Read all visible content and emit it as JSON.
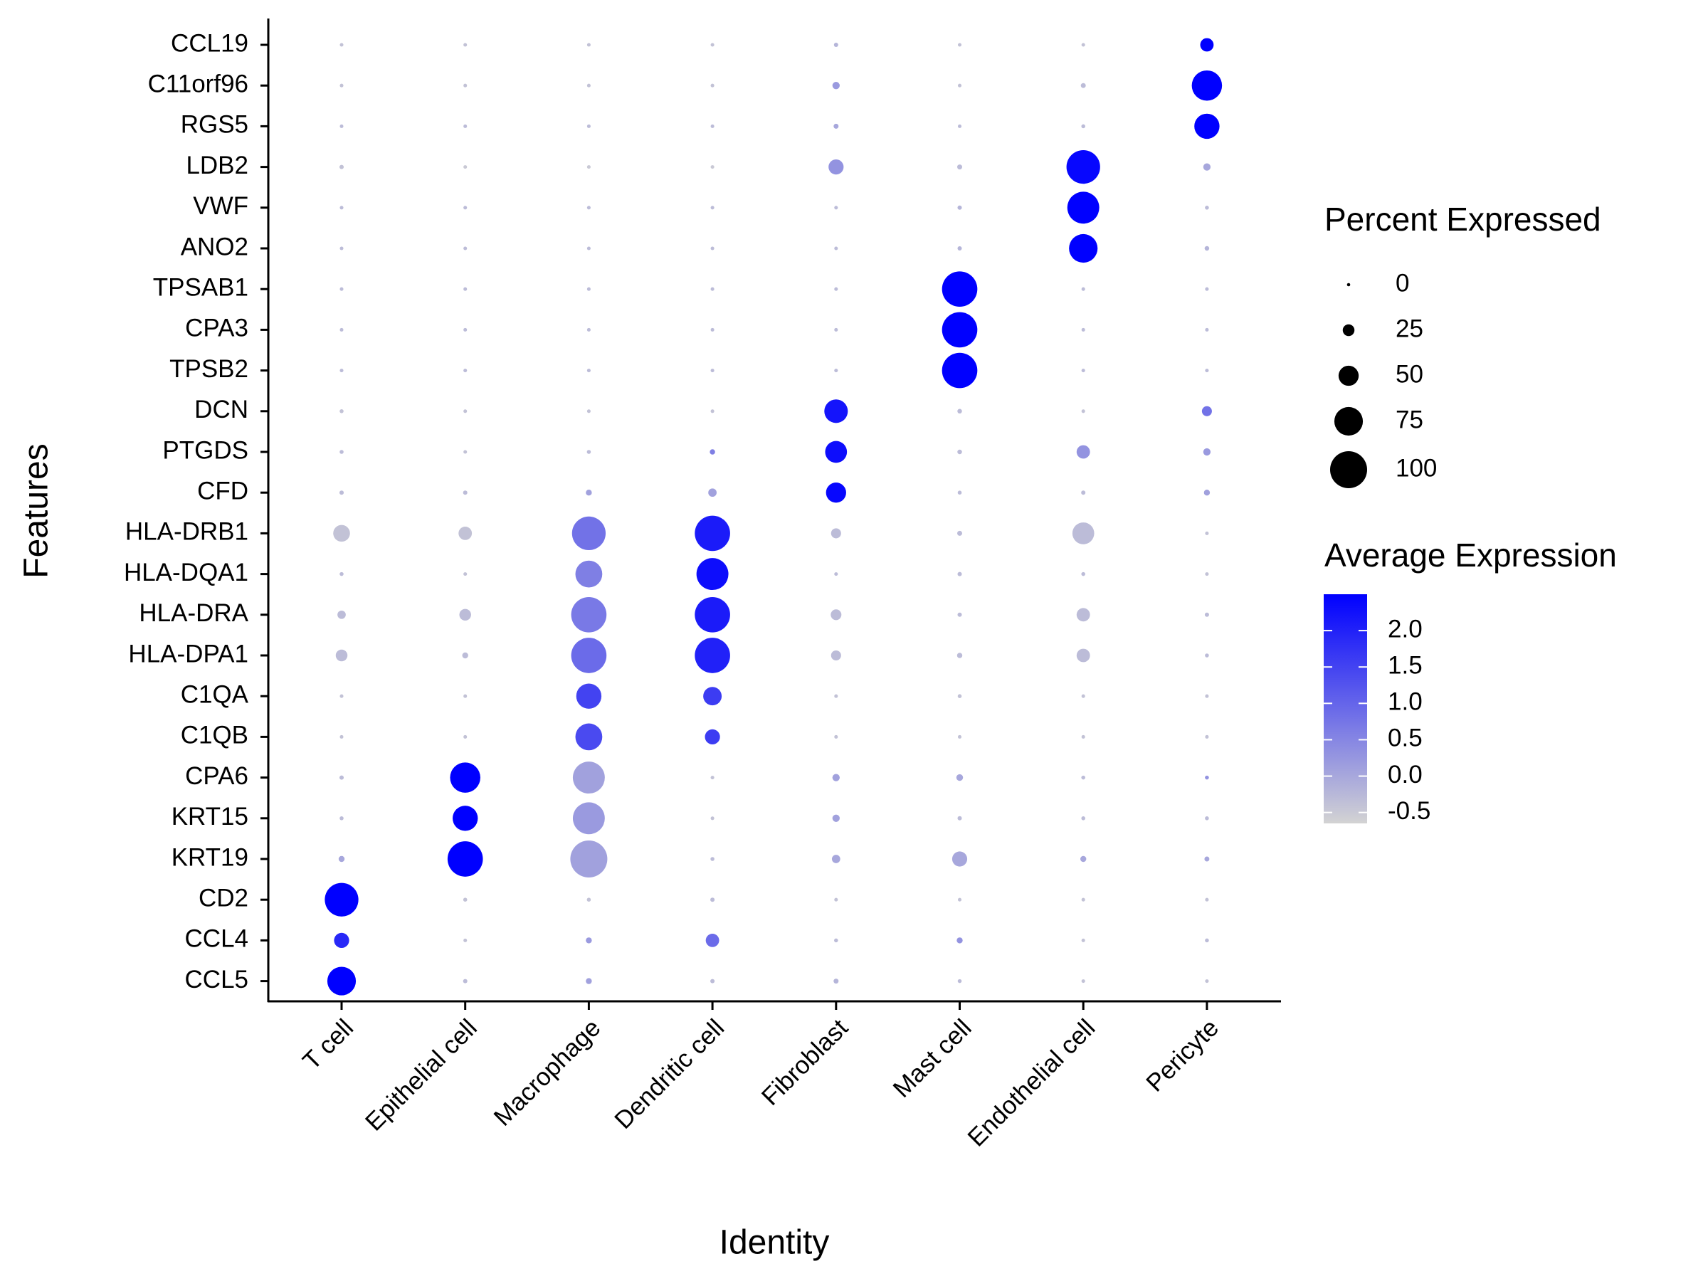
{
  "chart_data": {
    "type": "dotplot",
    "x_label": "Identity",
    "y_label": "Features",
    "categories": [
      "T cell",
      "Epithelial cell",
      "Macrophage",
      "Dendritic cell",
      "Fibroblast",
      "Mast cell",
      "Endothelial cell",
      "Pericyte"
    ],
    "features": [
      "CCL19",
      "C11orf96",
      "RGS5",
      "LDB2",
      "VWF",
      "ANO2",
      "TPSAB1",
      "CPA3",
      "TPSB2",
      "DCN",
      "PTGDS",
      "CFD",
      "HLA-DRB1",
      "HLA-DQA1",
      "HLA-DRA",
      "HLA-DPA1",
      "C1QA",
      "C1QB",
      "CPA6",
      "KRT15",
      "KRT19",
      "CD2",
      "CCL4",
      "CCL5"
    ],
    "percent_expressed": [
      [
        1,
        1,
        1,
        1,
        3,
        1,
        1,
        30
      ],
      [
        1,
        1,
        1,
        1,
        12,
        1,
        5,
        80
      ],
      [
        1,
        1,
        1,
        1,
        5,
        1,
        2,
        65
      ],
      [
        3,
        1,
        1,
        1,
        35,
        5,
        90,
        12
      ],
      [
        1,
        1,
        1,
        1,
        1,
        3,
        85,
        2
      ],
      [
        1,
        1,
        1,
        1,
        1,
        3,
        75,
        4
      ],
      [
        1,
        1,
        1,
        1,
        1,
        95,
        1,
        1
      ],
      [
        1,
        1,
        1,
        1,
        1,
        95,
        1,
        1
      ],
      [
        1,
        1,
        1,
        1,
        1,
        95,
        1,
        1
      ],
      [
        2,
        1,
        1,
        1,
        60,
        4,
        1,
        20
      ],
      [
        2,
        1,
        2,
        6,
        55,
        4,
        30,
        12
      ],
      [
        3,
        3,
        8,
        15,
        50,
        2,
        3,
        8
      ],
      [
        40,
        30,
        90,
        95,
        20,
        5,
        55,
        1
      ],
      [
        2,
        1,
        70,
        85,
        1,
        3,
        2,
        1
      ],
      [
        15,
        25,
        95,
        95,
        22,
        3,
        30,
        3
      ],
      [
        25,
        8,
        95,
        95,
        20,
        6,
        30,
        2
      ],
      [
        1,
        1,
        65,
        45,
        1,
        2,
        1,
        1
      ],
      [
        1,
        1,
        70,
        35,
        1,
        1,
        1,
        1
      ],
      [
        3,
        80,
        85,
        1,
        12,
        10,
        2,
        2
      ],
      [
        2,
        65,
        85,
        1,
        12,
        3,
        2,
        2
      ],
      [
        8,
        95,
        100,
        2,
        15,
        35,
        8,
        5
      ],
      [
        90,
        2,
        2,
        3,
        1,
        1,
        1,
        1
      ],
      [
        35,
        1,
        8,
        30,
        2,
        8,
        1,
        2
      ],
      [
        75,
        3,
        8,
        3,
        5,
        2,
        1,
        1
      ]
    ],
    "average_expression": [
      [
        -0.4,
        -0.4,
        -0.4,
        -0.4,
        -0.2,
        -0.4,
        -0.4,
        2.5
      ],
      [
        -0.4,
        -0.4,
        -0.4,
        -0.4,
        0.2,
        -0.4,
        -0.3,
        2.5
      ],
      [
        -0.3,
        -0.3,
        -0.3,
        -0.3,
        0,
        -0.3,
        -0.3,
        2.5
      ],
      [
        -0.4,
        -0.5,
        -0.5,
        -0.5,
        0.3,
        -0.3,
        2.4,
        0
      ],
      [
        -0.3,
        -0.3,
        -0.3,
        -0.3,
        -0.3,
        -0.2,
        2.5,
        -0.3
      ],
      [
        -0.3,
        -0.3,
        -0.3,
        -0.3,
        -0.3,
        -0.2,
        2.5,
        -0.2
      ],
      [
        -0.3,
        -0.3,
        -0.3,
        -0.3,
        -0.3,
        2.5,
        -0.3,
        -0.3
      ],
      [
        -0.3,
        -0.3,
        -0.3,
        -0.3,
        -0.3,
        2.5,
        -0.3,
        -0.3
      ],
      [
        -0.3,
        -0.3,
        -0.3,
        -0.3,
        -0.3,
        2.5,
        -0.3,
        -0.3
      ],
      [
        -0.4,
        -0.4,
        -0.4,
        -0.4,
        2.2,
        -0.3,
        -0.4,
        0.8
      ],
      [
        -0.3,
        -0.4,
        -0.3,
        0.6,
        2.3,
        -0.3,
        0.3,
        0.2
      ],
      [
        -0.3,
        -0.3,
        0.1,
        0.1,
        2.4,
        -0.3,
        -0.3,
        0.1
      ],
      [
        -0.4,
        -0.4,
        0.8,
        2.1,
        -0.3,
        -0.3,
        -0.3,
        -0.4
      ],
      [
        -0.3,
        -0.4,
        0.6,
        2.3,
        -0.3,
        -0.3,
        -0.3,
        -0.4
      ],
      [
        -0.3,
        -0.3,
        0.7,
        2.1,
        -0.3,
        -0.3,
        -0.3,
        -0.3
      ],
      [
        -0.3,
        -0.3,
        0.9,
        2.0,
        -0.3,
        -0.3,
        -0.3,
        -0.3
      ],
      [
        -0.4,
        -0.4,
        1.5,
        1.6,
        -0.4,
        -0.4,
        -0.4,
        -0.4
      ],
      [
        -0.4,
        -0.4,
        1.4,
        1.6,
        -0.4,
        -0.4,
        -0.4,
        -0.4
      ],
      [
        -0.3,
        2.5,
        0.1,
        -0.4,
        0.1,
        0,
        -0.3,
        0.3
      ],
      [
        -0.3,
        2.5,
        0.2,
        -0.4,
        0.1,
        -0.3,
        -0.3,
        -0.3
      ],
      [
        0,
        2.5,
        0.1,
        -0.3,
        0,
        0,
        0,
        0
      ],
      [
        2.5,
        -0.4,
        -0.4,
        -0.3,
        -0.4,
        -0.4,
        -0.4,
        -0.4
      ],
      [
        1.9,
        -0.4,
        0.2,
        0.9,
        -0.3,
        0.3,
        -0.4,
        -0.3
      ],
      [
        2.5,
        -0.3,
        0.1,
        -0.3,
        -0.2,
        -0.3,
        -0.4,
        -0.4
      ]
    ],
    "size_legend_title": "Percent Expressed",
    "size_lim": [
      0,
      100
    ],
    "size_breaks": [
      0,
      25,
      50,
      75,
      100
    ],
    "color_legend_title": "Average Expression",
    "color_lim": [
      -0.65,
      2.5
    ],
    "color_ticks": [
      {
        "value": -0.5,
        "label": "-0.5"
      },
      {
        "value": 0,
        "label": "0.0"
      },
      0.5,
      {
        "value": 1,
        "label": "1.0"
      },
      1.5,
      {
        "value": 2,
        "label": "2.0"
      }
    ],
    "color_low": "#d3d3d3",
    "color_high": "#0000ff"
  }
}
